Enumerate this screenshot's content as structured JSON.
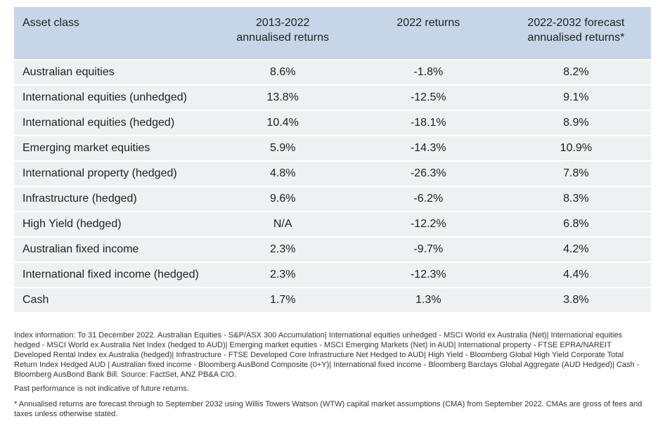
{
  "table": {
    "headers": [
      "Asset class",
      "2013-2022 annualised returns",
      "2022 returns",
      "2022-2032 forecast annualised returns*"
    ],
    "header_lines": [
      [
        "Asset class"
      ],
      [
        "2013-2022",
        "annualised returns"
      ],
      [
        "2022 returns"
      ],
      [
        "2022-2032 forecast",
        "annualised returns*"
      ]
    ],
    "rows": [
      [
        "Australian equities",
        "8.6%",
        "-1.8%",
        "8.2%"
      ],
      [
        "International equities (unhedged)",
        "13.8%",
        "-12.5%",
        "9.1%"
      ],
      [
        "International equities (hedged)",
        "10.4%",
        "-18.1%",
        "8.9%"
      ],
      [
        "Emerging market equities",
        "5.9%",
        "-14.3%",
        "10.9%"
      ],
      [
        "International property (hedged)",
        "4.8%",
        "-26.3%",
        "7.8%"
      ],
      [
        "Infrastructure (hedged)",
        "9.6%",
        "-6.2%",
        "8.3%"
      ],
      [
        "High Yield (hedged)",
        "N/A",
        "-12.2%",
        "6.8%"
      ],
      [
        "Australian fixed income",
        "2.3%",
        "-9.7%",
        "4.2%"
      ],
      [
        "International fixed income (hedged)",
        "2.3%",
        "-12.3%",
        "4.4%"
      ],
      [
        "Cash",
        "1.7%",
        "1.3%",
        "3.8%"
      ]
    ]
  },
  "notes": {
    "index_info": "Index information: To 31 December 2022. Australian Equities - S&P/ASX 300 Accumulation| International equities unhedged - MSCI World ex Australia (Net)| International equities hedged - MSCI World ex Australia Net Index (hedged to AUD)| Emerging market equities - MSCI Emerging Markets (Net) in AUD| International property - FTSE EPRA/NAREIT Developed Rental Index ex Australia (hedged)| Infrastructure - FTSE Developed Core Infrastructure Net Hedged to AUD| High Yield - Bloomberg Global High Yield Corporate Total Return Index Hedged AUD | Australian fixed income - Bloomberg AusBond Composite (0+Y)| International fixed income - Bloomberg Barclays Global Aggregate (AUD Hedged)| Cash - Bloomberg AusBond Bank Bill. Source: FactSet, ANZ PB&A CIO.",
    "disclaimer": "Past performance is not indicative of future returns.",
    "footnote": "* Annualised returns are forecast through to September 2032 using Willis Towers Watson (WTW) capital market assumptions (CMA) from September 2022. CMAs are gross of fees and taxes unless otherwise stated."
  },
  "colors": {
    "header_bg": "#c6d6e8",
    "row_bg": "#eef0f1"
  }
}
